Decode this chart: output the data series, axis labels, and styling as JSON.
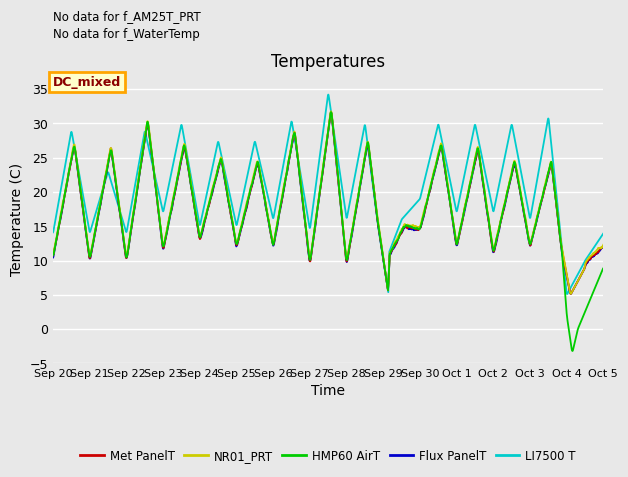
{
  "title": "Temperatures",
  "xlabel": "Time",
  "ylabel": "Temperature (C)",
  "ylim": [
    -5,
    37
  ],
  "yticks": [
    -5,
    0,
    5,
    10,
    15,
    20,
    25,
    30,
    35
  ],
  "no_data_text": [
    "No data for f_AM25T_PRT",
    "No data for f_WaterTemp"
  ],
  "dc_mixed_label": "DC_mixed",
  "legend_labels": [
    "Met PanelT",
    "NR01_PRT",
    "HMP60 AirT",
    "Flux PanelT",
    "LI7500 T"
  ],
  "line_colors": [
    "#cc0000",
    "#cccc00",
    "#00cc00",
    "#0000cc",
    "#00cccc"
  ],
  "background_color": "#e8e8e8",
  "grid_color": "#ffffff",
  "x_tick_labels": [
    "Sep 20",
    "Sep 21",
    "Sep 22",
    "Sep 23",
    "Sep 24",
    "Sep 25",
    "Sep 26",
    "Sep 27",
    "Sep 28",
    "Sep 29",
    "Sep 30",
    "Oct 1",
    "Oct 2",
    "Oct 3",
    "Oct 4",
    "Oct 5"
  ]
}
